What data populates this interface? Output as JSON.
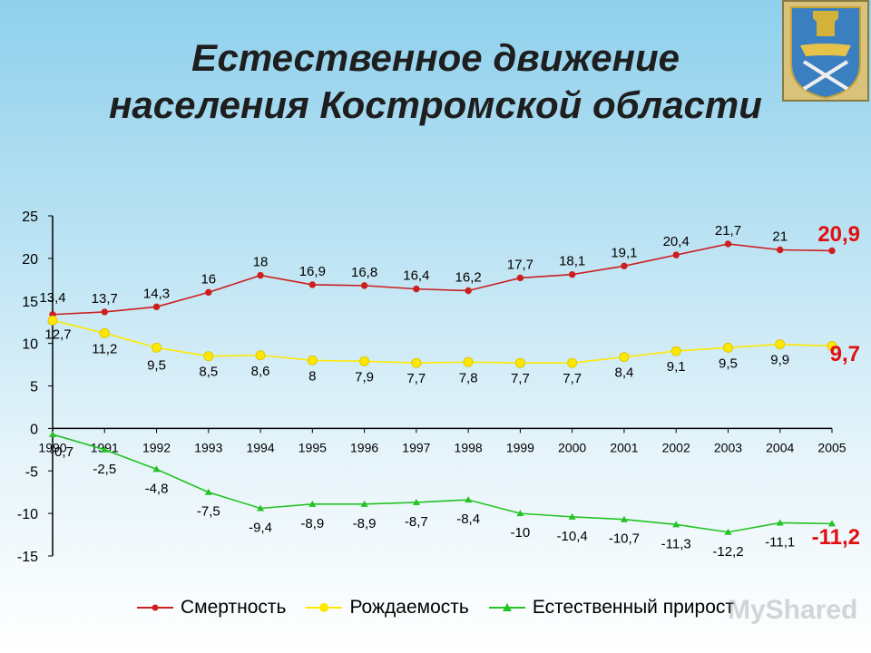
{
  "title": {
    "line1": "Естественное движение",
    "line2": "населения Костромской области"
  },
  "emblem": {
    "name": "kostroma-region-coat-of-arms"
  },
  "watermark": "MyShared",
  "colors": {
    "mortality": "#cc1f1f",
    "birth": "#ffe800",
    "growth": "#22c322",
    "end_label": "#e01010",
    "axis": "#000000"
  },
  "chart_data": {
    "type": "line",
    "categories": [
      "1990",
      "1991",
      "1992",
      "1993",
      "1994",
      "1995",
      "1996",
      "1997",
      "1998",
      "1999",
      "2000",
      "2001",
      "2002",
      "2003",
      "2004",
      "2005"
    ],
    "ylim": [
      -15,
      25
    ],
    "yticks": [
      "25",
      "20",
      "15",
      "10",
      "5",
      "0",
      "-5",
      "-10",
      "-15"
    ],
    "legend_position": "bottom",
    "series": [
      {
        "key": "mortality",
        "name": "Смертность",
        "values": [
          13.4,
          13.7,
          14.3,
          16,
          18,
          16.9,
          16.8,
          16.4,
          16.2,
          17.7,
          18.1,
          19.1,
          20.4,
          21.7,
          21,
          20.9
        ],
        "labels": [
          "13,4",
          "13,7",
          "14,3",
          "16",
          "18",
          "16,9",
          "16,8",
          "16,4",
          "16,2",
          "17,7",
          "18,1",
          "19,1",
          "20,4",
          "21,7",
          "21",
          ""
        ],
        "end_label": "20,9"
      },
      {
        "key": "birth",
        "name": "Рождаемость",
        "values": [
          12.7,
          11.2,
          9.5,
          8.5,
          8.6,
          8,
          7.9,
          7.7,
          7.8,
          7.7,
          7.7,
          8.4,
          9.1,
          9.5,
          9.9,
          9.7
        ],
        "labels": [
          "12,7",
          "11,2",
          "9,5",
          "8,5",
          "8,6",
          "8",
          "7,9",
          "7,7",
          "7,8",
          "7,7",
          "7,7",
          "8,4",
          "9,1",
          "9,5",
          "9,9",
          ""
        ],
        "end_label": "9,7"
      },
      {
        "key": "growth",
        "name": "Естественный прирост",
        "values": [
          -0.7,
          -2.5,
          -4.8,
          -7.5,
          -9.4,
          -8.9,
          -8.9,
          -8.7,
          -8.4,
          -10,
          -10.4,
          -10.7,
          -11.3,
          -12.2,
          -11.1,
          -11.2
        ],
        "labels": [
          "-0,7",
          "-2,5",
          "-4,8",
          "-7,5",
          "-9,4",
          "-8,9",
          "-8,9",
          "-8,7",
          "-8,4",
          "-10",
          "-10,4",
          "-10,7",
          "-11,3",
          "-12,2",
          "-11,1",
          ""
        ],
        "end_label": "-11,2"
      }
    ]
  }
}
